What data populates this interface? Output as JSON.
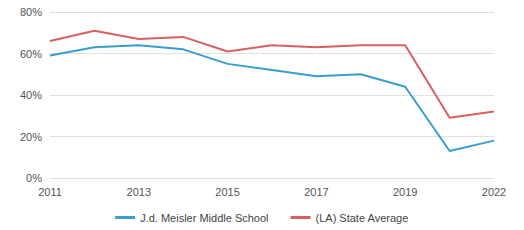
{
  "chart_data": {
    "type": "line",
    "categories": [
      "2011",
      null,
      "2013",
      null,
      "2015",
      null,
      "2017",
      null,
      "2019",
      null,
      "2022"
    ],
    "series": [
      {
        "name": "J.d. Meisler Middle School",
        "color": "#3a9dd0",
        "values": [
          59,
          63,
          64,
          62,
          55,
          52,
          49,
          50,
          44,
          13,
          18
        ]
      },
      {
        "name": "(LA) State Average",
        "color": "#d9605f",
        "values": [
          66,
          71,
          67,
          68,
          61,
          64,
          63,
          64,
          64,
          29,
          32
        ]
      }
    ],
    "ylim": [
      0,
      80
    ],
    "yticks": [
      {
        "value": 0,
        "label": "0%"
      },
      {
        "value": 20,
        "label": "20%"
      },
      {
        "value": 40,
        "label": "40%"
      },
      {
        "value": 60,
        "label": "60%"
      },
      {
        "value": 80,
        "label": "80%"
      }
    ],
    "grid": true,
    "legend": "bottom"
  }
}
